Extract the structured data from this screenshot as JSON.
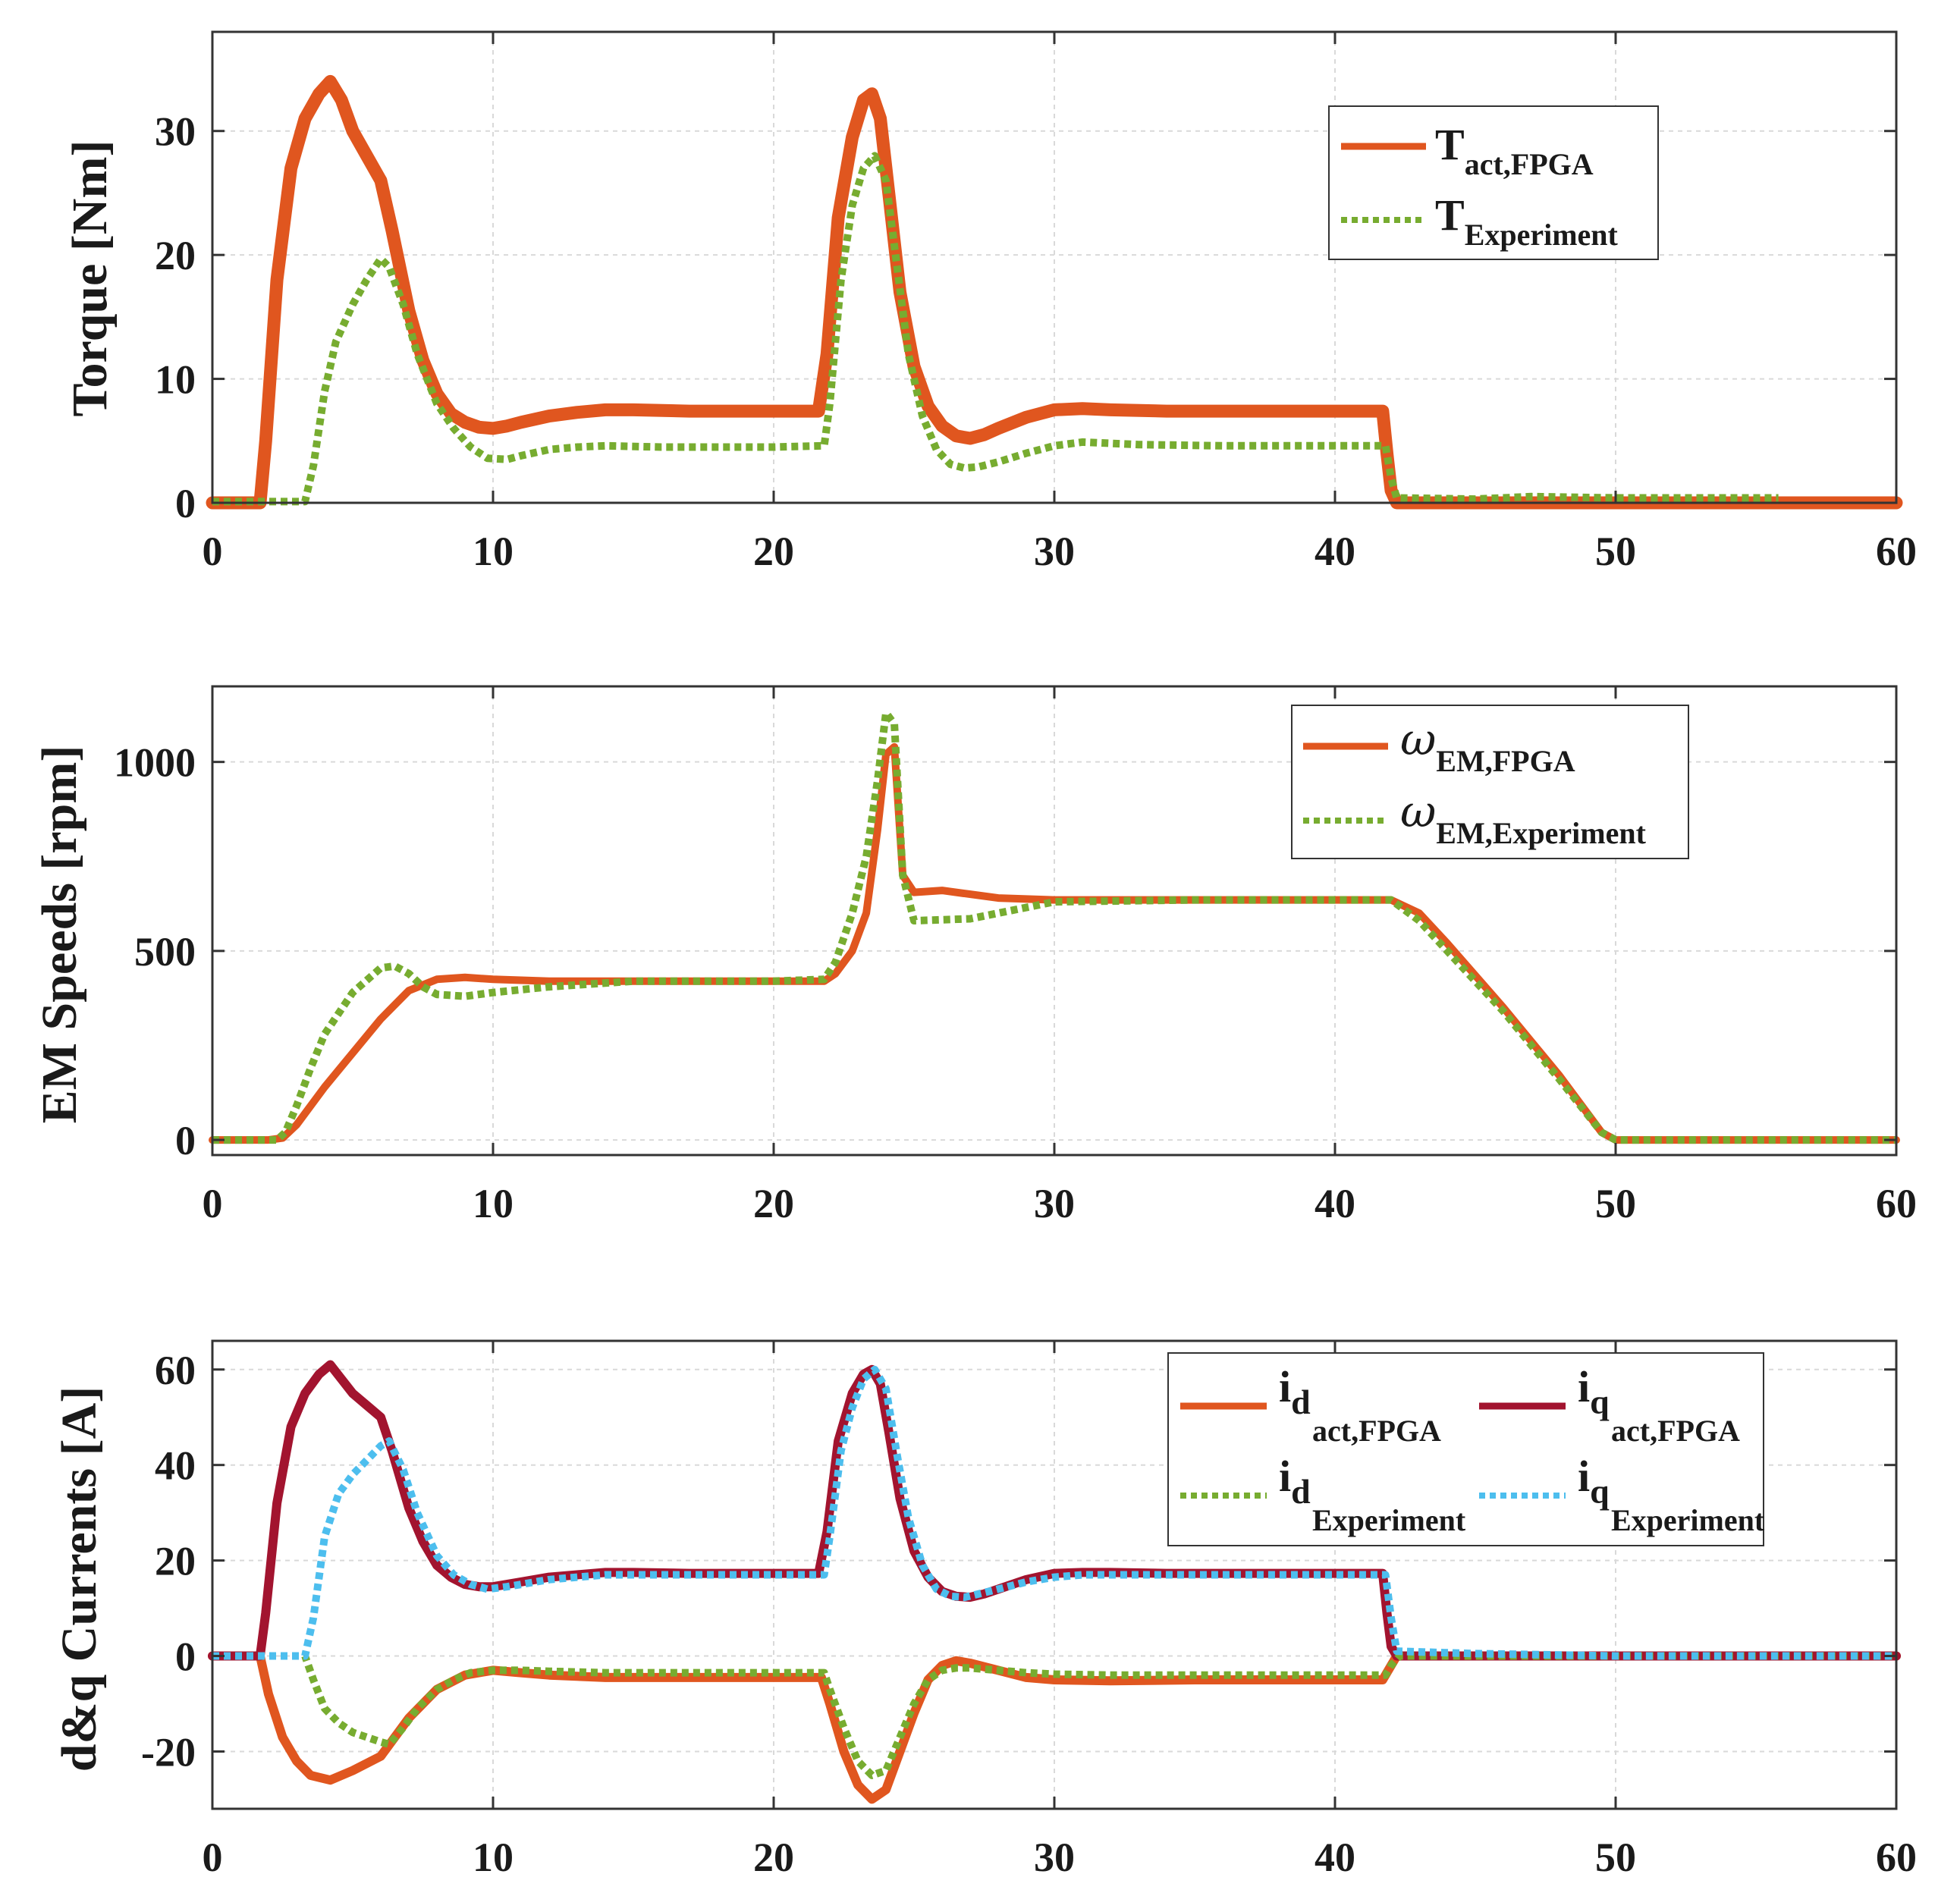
{
  "colors": {
    "fpga": "#E0561F",
    "experiment": "#77AC30",
    "iq_fpga": "#A2142F",
    "iq_experiment": "#4DBEEE",
    "grid": "#d9d9d9",
    "axis": "#333333"
  },
  "chart_data": [
    {
      "type": "line",
      "ylabel": "Torque [Nm]",
      "xlim": [
        0,
        60
      ],
      "ylim": [
        0,
        38
      ],
      "xticks": [
        0,
        10,
        20,
        30,
        40,
        50,
        60
      ],
      "yticks": [
        0,
        10,
        20,
        30
      ],
      "legend_position": "top-right",
      "legend": [
        {
          "main": "T",
          "sub": "act,FPGA"
        },
        {
          "main": "T",
          "sub": "Experiment"
        }
      ],
      "series": [
        {
          "name": "T_act,FPGA",
          "style": "solid",
          "color_key": "fpga",
          "x": [
            0,
            1.7,
            1.9,
            2.3,
            2.8,
            3.3,
            3.8,
            4.2,
            4.6,
            5.0,
            5.5,
            6.0,
            6.4,
            7.0,
            7.5,
            8.0,
            8.5,
            9.0,
            9.5,
            10.0,
            10.5,
            11.0,
            12.0,
            13.0,
            14.0,
            15.0,
            17.0,
            20.0,
            21.6,
            21.9,
            22.3,
            22.8,
            23.2,
            23.5,
            23.8,
            24.1,
            24.5,
            25.0,
            25.5,
            26.0,
            26.5,
            27.0,
            27.5,
            28.0,
            29.0,
            30.0,
            31.0,
            32.0,
            34.0,
            37.0,
            40.0,
            41.7,
            41.85,
            42.0,
            42.2,
            50.0,
            60.0
          ],
          "y": [
            0,
            0,
            5,
            18,
            27,
            31,
            33,
            34,
            32.5,
            30,
            28,
            26,
            22,
            15.5,
            11.5,
            8.8,
            7.2,
            6.5,
            6.1,
            6.0,
            6.2,
            6.5,
            7.0,
            7.3,
            7.5,
            7.5,
            7.4,
            7.4,
            7.4,
            12,
            23,
            29.5,
            32.5,
            33,
            31,
            25,
            17,
            11,
            7.8,
            6.2,
            5.4,
            5.2,
            5.5,
            6.0,
            6.9,
            7.5,
            7.6,
            7.5,
            7.4,
            7.4,
            7.4,
            7.4,
            4,
            1,
            0,
            0,
            0
          ]
        },
        {
          "name": "T_Experiment",
          "style": "dotted",
          "color_key": "experiment",
          "x": [
            0,
            3.3,
            3.6,
            4.0,
            4.4,
            5.0,
            5.5,
            6.0,
            6.3,
            6.8,
            7.3,
            8.0,
            8.6,
            9.2,
            9.8,
            10.5,
            11.0,
            12.0,
            13.0,
            14.0,
            16.0,
            20.0,
            21.8,
            22.0,
            22.4,
            22.8,
            23.2,
            23.6,
            24.0,
            24.4,
            24.8,
            25.3,
            25.8,
            26.3,
            26.8,
            27.3,
            28.0,
            29.0,
            30.0,
            31.0,
            33.0,
            36.0,
            40.0,
            41.8,
            42.0,
            42.2,
            45.0,
            47.0,
            50.0,
            55.8
          ],
          "y": [
            0.1,
            0.1,
            3,
            9,
            13,
            16,
            18,
            19.7,
            19,
            16,
            12,
            8,
            6,
            4.5,
            3.6,
            3.5,
            3.8,
            4.3,
            4.5,
            4.6,
            4.5,
            4.5,
            4.6,
            8,
            18,
            24,
            27,
            28,
            26,
            19,
            12,
            7,
            4.3,
            3.1,
            2.8,
            2.9,
            3.3,
            4.0,
            4.6,
            4.9,
            4.7,
            4.6,
            4.6,
            4.6,
            2,
            0.4,
            0.3,
            0.5,
            0.4,
            0.4
          ]
        }
      ]
    },
    {
      "type": "line",
      "ylabel": "EM Speeds [rpm]",
      "xlim": [
        0,
        60
      ],
      "ylim": [
        -40,
        1200
      ],
      "xticks": [
        0,
        10,
        20,
        30,
        40,
        50,
        60
      ],
      "yticks": [
        0,
        500,
        1000
      ],
      "legend_position": "top-right",
      "legend": [
        {
          "main": "ω",
          "sub": "EM,FPGA"
        },
        {
          "main": "ω",
          "sub": "EM,Experiment"
        }
      ],
      "series": [
        {
          "name": "omega_EM,FPGA",
          "style": "solid",
          "color_key": "fpga",
          "x": [
            0,
            2.0,
            2.5,
            3.0,
            4.0,
            5.0,
            6.0,
            7.0,
            8.0,
            9.0,
            10.0,
            12.0,
            15.0,
            20.0,
            21.8,
            22.2,
            22.8,
            23.3,
            23.7,
            24.0,
            24.3,
            24.6,
            25.0,
            26.0,
            27.0,
            28.0,
            30.0,
            35.0,
            40.0,
            42.0,
            43.0,
            44.0,
            46.0,
            48.0,
            49.5,
            50.0,
            60.0
          ],
          "y": [
            0,
            0,
            5,
            40,
            140,
            230,
            320,
            395,
            425,
            430,
            425,
            420,
            420,
            420,
            420,
            440,
            500,
            600,
            820,
            1020,
            1040,
            700,
            655,
            660,
            650,
            640,
            635,
            635,
            635,
            635,
            600,
            520,
            350,
            170,
            20,
            0,
            0
          ]
        },
        {
          "name": "omega_EM,Experiment",
          "style": "dotted",
          "color_key": "experiment",
          "x": [
            0,
            2.3,
            2.6,
            3.0,
            3.5,
            4.0,
            5.0,
            6.0,
            6.5,
            7.0,
            7.5,
            8.0,
            9.0,
            10.0,
            12.0,
            15.0,
            20.0,
            21.8,
            22.2,
            22.8,
            23.3,
            23.7,
            24.0,
            24.3,
            24.6,
            25.0,
            27.0,
            30.0,
            35.0,
            40.0,
            42.0,
            43.0,
            44.0,
            46.0,
            48.0,
            49.5,
            50.0,
            60.0
          ],
          "y": [
            0,
            0,
            20,
            90,
            190,
            280,
            390,
            455,
            460,
            440,
            405,
            385,
            380,
            390,
            405,
            420,
            420,
            425,
            470,
            600,
            750,
            950,
            1130,
            1100,
            700,
            580,
            585,
            630,
            635,
            635,
            635,
            580,
            500,
            340,
            160,
            20,
            0,
            0
          ]
        }
      ]
    },
    {
      "type": "line",
      "ylabel": "d&q Currents [A]",
      "xlim": [
        0,
        60
      ],
      "ylim": [
        -32,
        66
      ],
      "xticks": [
        0,
        10,
        20,
        30,
        40,
        50,
        60
      ],
      "yticks": [
        -20,
        0,
        20,
        40,
        60
      ],
      "legend_position": "top-right",
      "legend": [
        {
          "main": "i",
          "sub": "d",
          "subsub": "act,FPGA"
        },
        {
          "main": "i",
          "sub": "q",
          "subsub": "act,FPGA"
        },
        {
          "main": "i",
          "sub": "d",
          "subsub": "Experiment"
        },
        {
          "main": "i",
          "sub": "q",
          "subsub": "Experiment"
        }
      ],
      "series": [
        {
          "name": "i_d act,FPGA",
          "style": "solid",
          "color_key": "fpga",
          "x": [
            0,
            1.7,
            2.0,
            2.5,
            3.0,
            3.5,
            4.2,
            5.0,
            6.0,
            6.5,
            7.0,
            8.0,
            9.0,
            10.0,
            11.0,
            12.0,
            14.0,
            17.0,
            20.0,
            21.7,
            22.0,
            22.5,
            23.0,
            23.5,
            24.0,
            24.5,
            25.0,
            25.5,
            26.0,
            26.5,
            27.0,
            28.0,
            29.0,
            30.0,
            32.0,
            35.0,
            40.0,
            41.7,
            42.0,
            42.2,
            50.0,
            60.0
          ],
          "y": [
            0,
            0,
            -8,
            -17,
            -22,
            -25,
            -26,
            -24,
            -21,
            -17,
            -13,
            -7,
            -4,
            -3,
            -3.5,
            -4,
            -4.5,
            -4.5,
            -4.5,
            -4.5,
            -10,
            -20,
            -27,
            -30,
            -28,
            -20,
            -12,
            -5,
            -2,
            -1,
            -1.5,
            -3,
            -4.5,
            -5,
            -5.2,
            -5,
            -5,
            -5,
            -2,
            0,
            0,
            0
          ]
        },
        {
          "name": "i_q act,FPGA",
          "style": "solid",
          "color_key": "iq_fpga",
          "x": [
            0,
            1.7,
            1.9,
            2.3,
            2.8,
            3.3,
            3.8,
            4.2,
            4.6,
            5.0,
            5.5,
            6.0,
            6.4,
            7.0,
            7.5,
            8.0,
            8.5,
            9.0,
            9.5,
            10.0,
            10.5,
            11.0,
            12.0,
            13.0,
            14.0,
            15.0,
            17.0,
            20.0,
            21.6,
            21.9,
            22.3,
            22.8,
            23.2,
            23.5,
            23.8,
            24.1,
            24.5,
            25.0,
            25.5,
            26.0,
            26.5,
            27.0,
            27.5,
            28.0,
            29.0,
            30.0,
            31.0,
            32.0,
            34.0,
            37.0,
            40.0,
            41.7,
            41.85,
            42.0,
            42.2,
            50.0,
            60.0
          ],
          "y": [
            0,
            0,
            9,
            32,
            48,
            55,
            59,
            61,
            58,
            55,
            52.5,
            50,
            43,
            31,
            24,
            19,
            16.5,
            15,
            14.5,
            14.5,
            15,
            15.5,
            16.5,
            17,
            17.5,
            17.5,
            17.3,
            17.3,
            17.3,
            26,
            45,
            55,
            59,
            60,
            57,
            47,
            33,
            22,
            16.5,
            13.5,
            12.5,
            12.3,
            13,
            14,
            16,
            17.3,
            17.5,
            17.5,
            17.3,
            17.3,
            17.3,
            17.3,
            9,
            2,
            0,
            0,
            0
          ]
        },
        {
          "name": "i_d Experiment",
          "style": "dotted",
          "color_key": "experiment",
          "x": [
            0,
            3.3,
            3.6,
            4.0,
            4.5,
            5.0,
            5.5,
            6.0,
            6.3,
            6.8,
            7.3,
            8.0,
            8.6,
            9.2,
            10.0,
            11.0,
            12.0,
            14.0,
            17.0,
            20.0,
            21.8,
            22.0,
            22.5,
            23.0,
            23.5,
            24.0,
            24.5,
            25.0,
            25.5,
            26.0,
            26.5,
            27.0,
            28.0,
            29.0,
            30.0,
            32.0,
            36.0,
            40.0,
            41.8,
            42.0,
            42.3,
            50.0,
            60.0
          ],
          "y": [
            0,
            0,
            -5,
            -11,
            -14,
            -16,
            -17,
            -18,
            -18.5,
            -15,
            -11,
            -7,
            -5,
            -3.5,
            -3,
            -3,
            -3.2,
            -3.5,
            -3.5,
            -3.5,
            -3.5,
            -7,
            -15,
            -22,
            -25,
            -24,
            -17,
            -10,
            -5,
            -3,
            -2.5,
            -2.5,
            -3,
            -3.5,
            -3.8,
            -4,
            -4,
            -4,
            -4,
            -2,
            0,
            0,
            0
          ]
        },
        {
          "name": "i_q Experiment",
          "style": "dotted",
          "color_key": "iq_experiment",
          "x": [
            0,
            3.3,
            3.6,
            4.0,
            4.5,
            5.0,
            5.5,
            6.0,
            6.3,
            6.8,
            7.3,
            8.0,
            8.6,
            9.2,
            9.8,
            10.5,
            11.0,
            12.0,
            13.0,
            14.0,
            16.0,
            20.0,
            21.8,
            22.0,
            22.4,
            22.8,
            23.2,
            23.6,
            24.0,
            24.4,
            24.8,
            25.3,
            25.8,
            26.3,
            26.8,
            27.3,
            28.0,
            29.0,
            30.0,
            31.0,
            33.0,
            36.0,
            40.0,
            41.8,
            42.0,
            42.2,
            45.0,
            50.0,
            60.0
          ],
          "y": [
            0,
            0,
            8,
            25,
            34,
            38,
            41,
            44,
            45,
            39,
            30,
            21,
            17,
            15,
            14,
            14.5,
            15,
            16,
            16.5,
            17,
            17,
            17,
            17,
            25,
            43,
            52,
            58,
            60,
            56,
            42,
            29,
            19,
            14,
            12.5,
            12.3,
            13,
            14,
            15.5,
            16.5,
            17,
            17,
            17,
            17,
            17,
            8,
            1,
            0.5,
            0,
            0
          ]
        }
      ]
    }
  ]
}
